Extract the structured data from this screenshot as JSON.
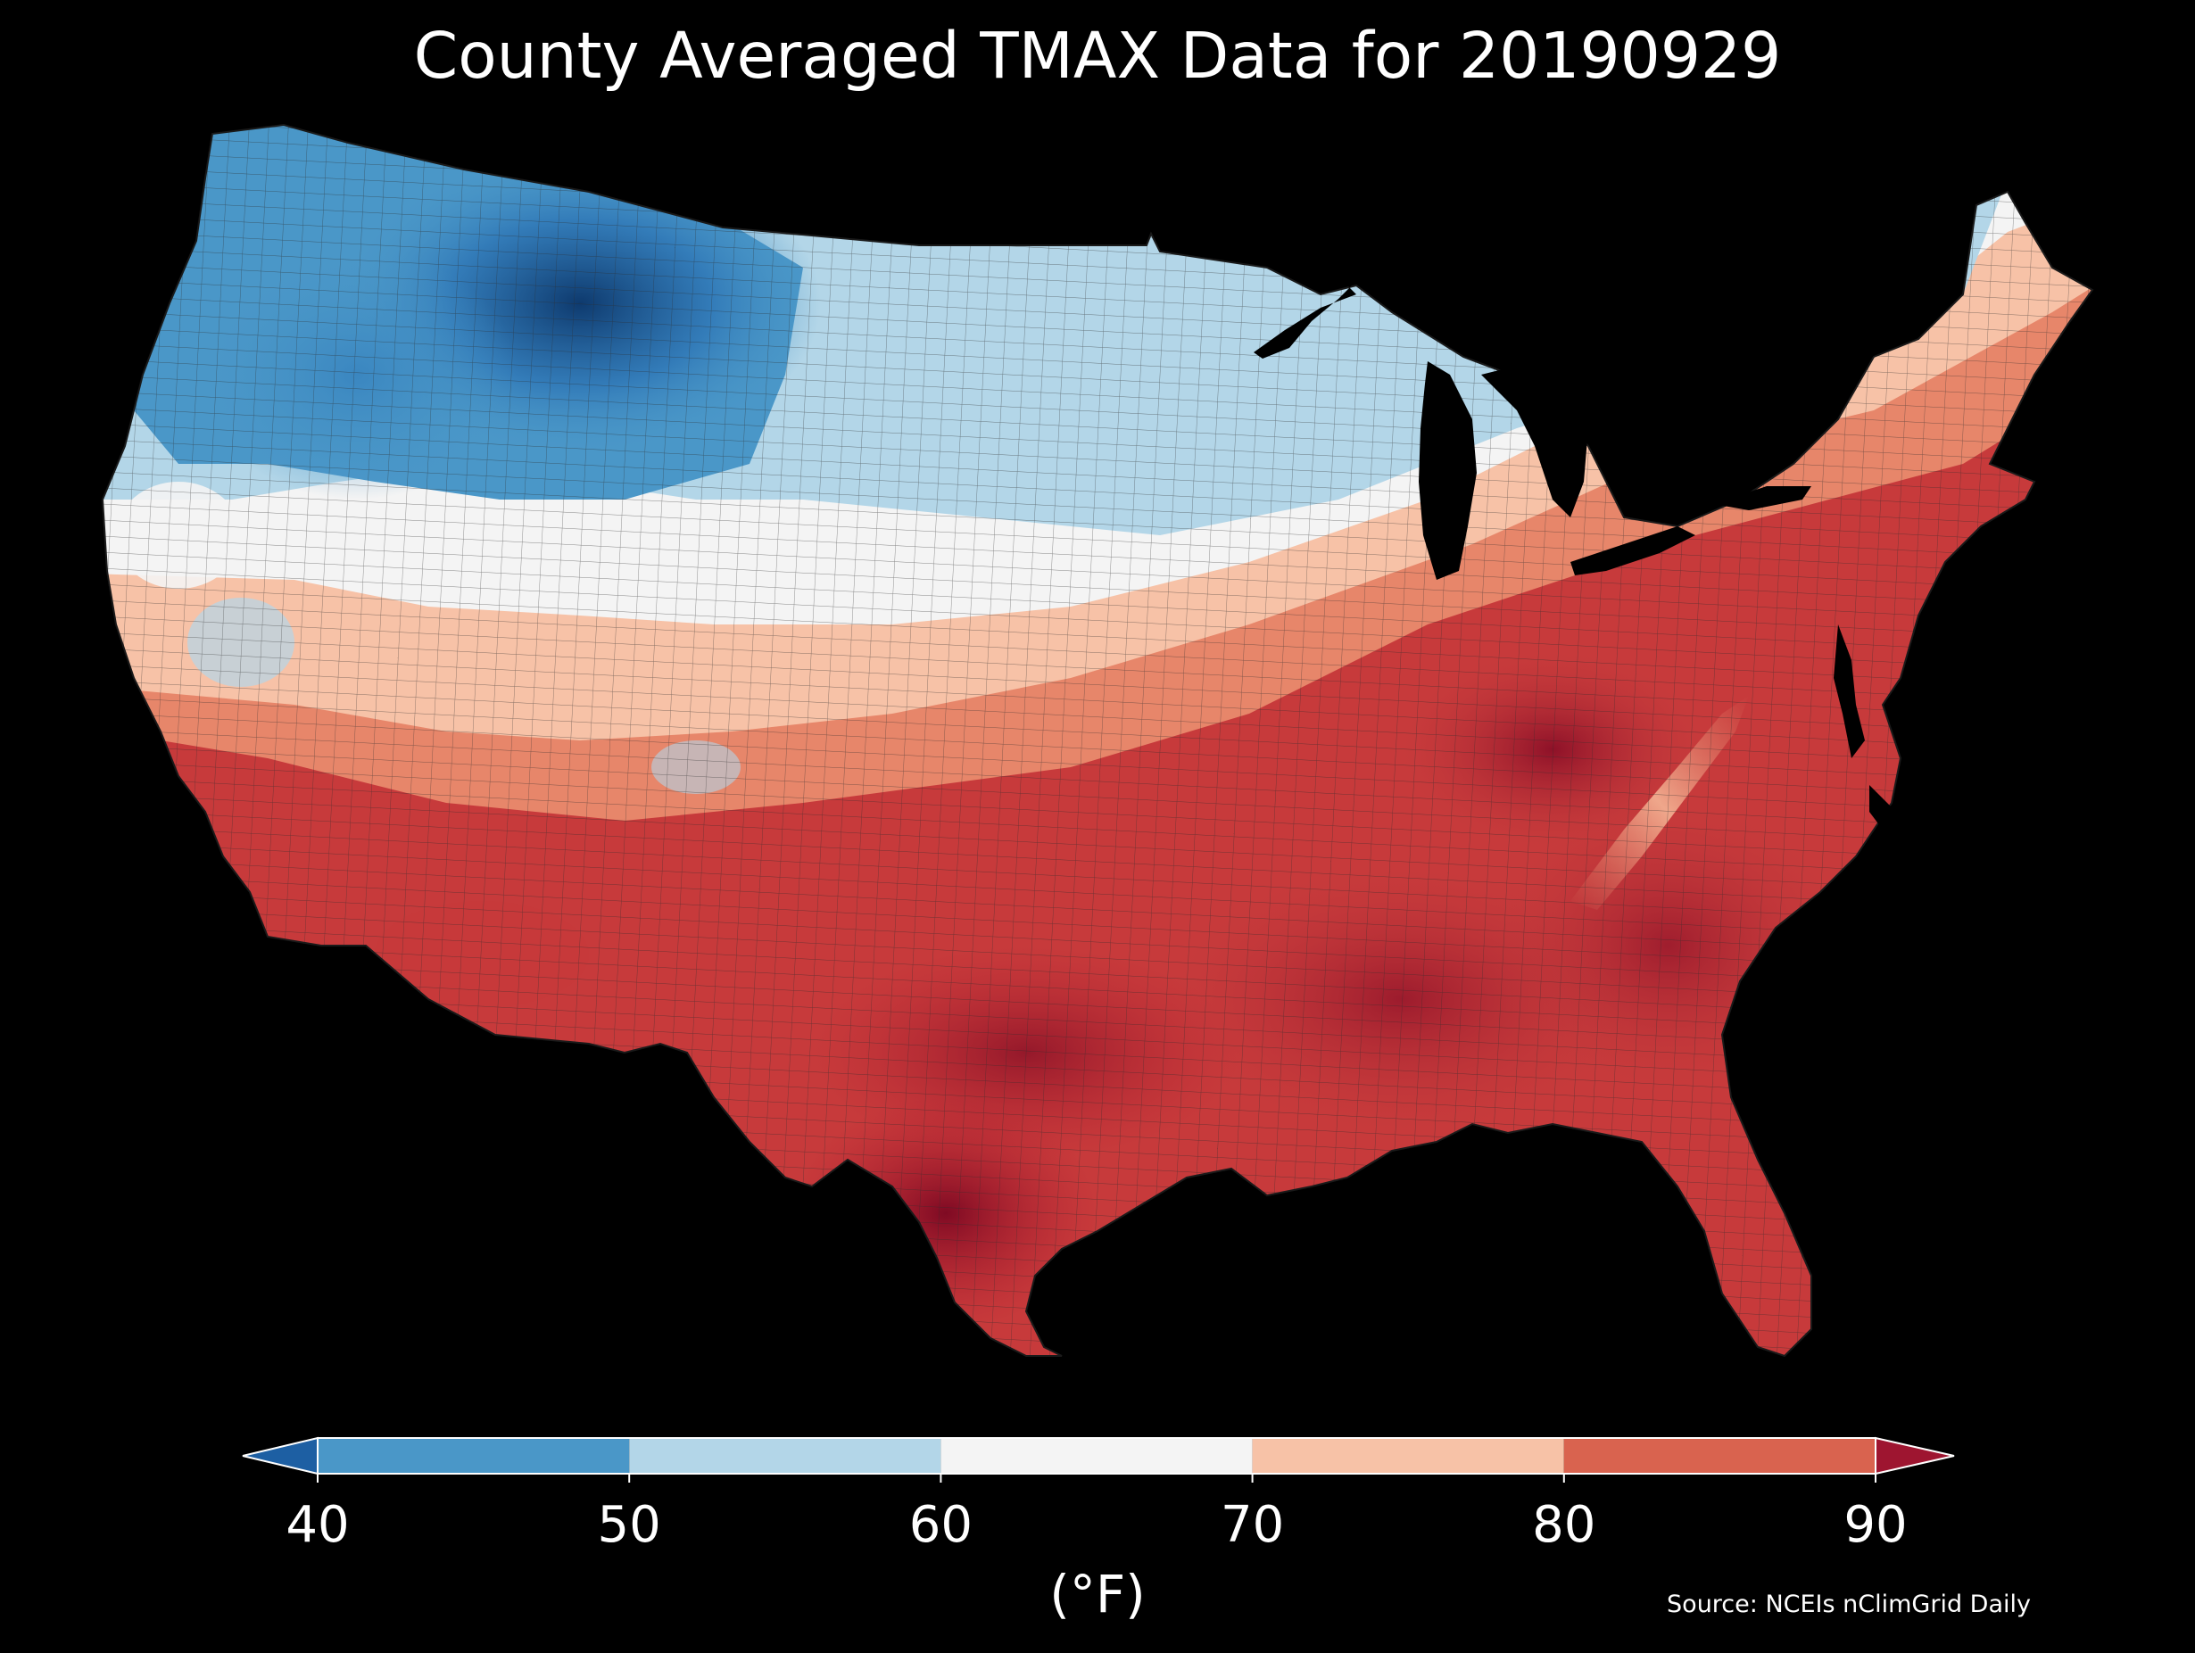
{
  "title": "County Averaged TMAX Data for 20190929",
  "colorbar": {
    "unit": "(°F)",
    "ticks": [
      "40",
      "50",
      "60",
      "70",
      "80",
      "90"
    ],
    "bins": [
      {
        "range": "<40",
        "color": "#1d5fa3"
      },
      {
        "range": "40-50",
        "color": "#4a97c8"
      },
      {
        "range": "50-60",
        "color": "#b3d6e8"
      },
      {
        "range": "60-70",
        "color": "#f4f4f4"
      },
      {
        "range": "70-80",
        "color": "#f7c2a7"
      },
      {
        "range": "80-90",
        "color": "#d9634f"
      },
      {
        "range": ">90",
        "color": "#9e1530"
      }
    ]
  },
  "source": "Source: NCEIs nClimGrid Daily",
  "colors": {
    "background": "#000000",
    "county_border": "#2b2b2b",
    "lakes": "#000000"
  }
}
